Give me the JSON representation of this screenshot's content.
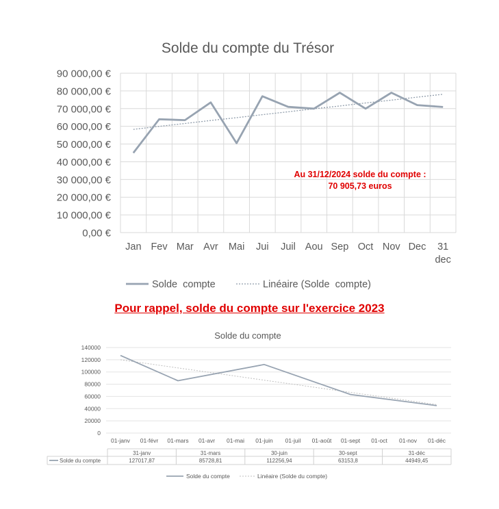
{
  "chart_data": [
    {
      "type": "line",
      "title": "Solde du compte du Trésor",
      "categories": [
        "Jan",
        "Fev",
        "Mar",
        "Avr",
        "Mai",
        "Jui",
        "Juil",
        "Aou",
        "Sep",
        "Oct",
        "Nov",
        "Dec",
        "31 dec"
      ],
      "series": [
        {
          "name": "Solde  compte",
          "values": [
            45000,
            64000,
            63500,
            73500,
            50500,
            77000,
            71000,
            70000,
            79000,
            70000,
            79000,
            72000,
            70905.73
          ],
          "color": "#97a3b1"
        },
        {
          "name": "Linéaire (Solde  compte)",
          "trendline": true,
          "values": [
            58300,
            60000,
            61600,
            63300,
            64900,
            66600,
            68200,
            69900,
            71500,
            73200,
            74800,
            76500,
            78100
          ],
          "color": "#8f9caa"
        }
      ],
      "yticks": [
        "0,00 €",
        "10 000,00 €",
        "20 000,00 €",
        "30 000,00 €",
        "40 000,00 €",
        "50 000,00 €",
        "60 000,00 €",
        "70 000,00 €",
        "80 000,00 €",
        "90 000,00 €"
      ],
      "ylim": [
        0,
        90000
      ],
      "grid": true,
      "legend": "bottom",
      "annotation": [
        "Au 31/12/2024 solde du compte :",
        "70 905,73 euros"
      ],
      "annotation_color": "#e00000"
    },
    {
      "type": "line",
      "title": "Solde du compte",
      "categories": [
        "01-janv",
        "01-févr",
        "01-mars",
        "01-avr",
        "01-mai",
        "01-juin",
        "01-juil",
        "01-août",
        "01-sept",
        "01-oct",
        "01-nov",
        "01-déc"
      ],
      "series": [
        {
          "name": "Solde du compte",
          "values": [
            127017.87,
            null,
            85728.81,
            null,
            null,
            112256.94,
            null,
            null,
            63153.8,
            null,
            null,
            44949.45
          ],
          "color": "#97a3b1"
        },
        {
          "name": "Linéaire (Solde du compte)",
          "trendline": true,
          "values": [
            120000,
            113300,
            106600,
            100000,
            93300,
            86600,
            80000,
            73300,
            66600,
            60000,
            53300,
            46600
          ],
          "color": "#bfbfbf"
        }
      ],
      "yticks": [
        "0",
        "20000",
        "40000",
        "60000",
        "80000",
        "100000",
        "120000",
        "140000"
      ],
      "ylim": [
        0,
        140000
      ],
      "grid": true,
      "legend": "bottom",
      "table": {
        "row_label": "Solde du compte",
        "dates": [
          "31-janv",
          "31-mars",
          "30-juin",
          "30-sept",
          "31-déc"
        ],
        "values": [
          "127017,87",
          "85728,81",
          "112256,94",
          "63153,8",
          "44949,45"
        ]
      }
    }
  ],
  "rappel": "Pour rappel, solde du compte sur l'exercice 2023"
}
